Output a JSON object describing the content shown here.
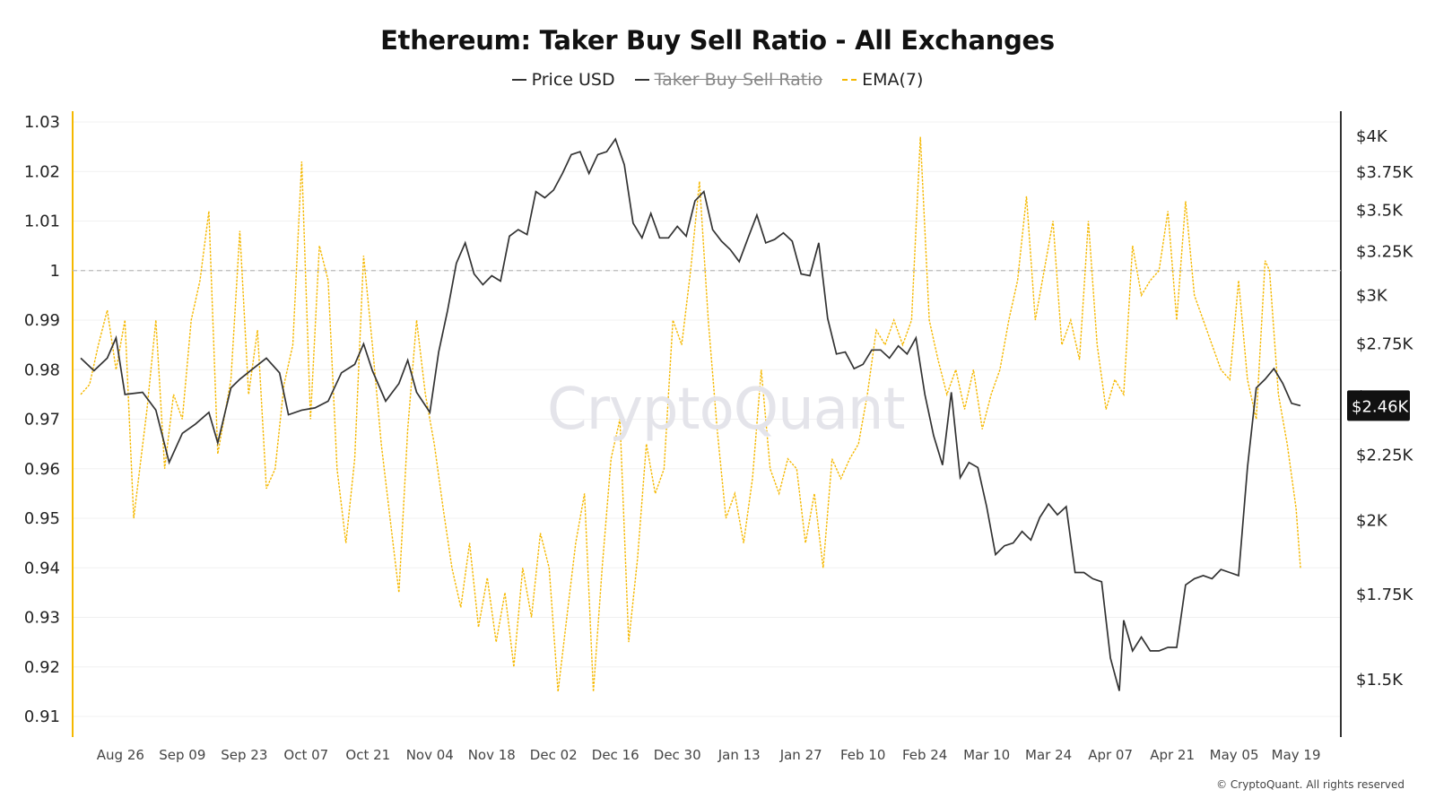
{
  "chart_data": {
    "type": "line",
    "title": "Ethereum: Taker Buy Sell Ratio - All Exchanges",
    "legend": [
      {
        "name": "Price USD",
        "color": "#333333",
        "hidden": false
      },
      {
        "name": "Taker Buy Sell Ratio",
        "color": "#333333",
        "hidden": true
      },
      {
        "name": "EMA(7)",
        "color": "#f5b800",
        "hidden": false
      }
    ],
    "x_ticks": [
      "Aug 26",
      "Sep 09",
      "Sep 23",
      "Oct 07",
      "Oct 21",
      "Nov 04",
      "Nov 18",
      "Dec 02",
      "Dec 16",
      "Dec 30",
      "Jan 13",
      "Jan 27",
      "Feb 10",
      "Feb 24",
      "Mar 10",
      "Mar 24",
      "Apr 07",
      "Apr 21",
      "May 05",
      "May 19"
    ],
    "x_range": [
      "2024-08-17",
      "2025-05-20"
    ],
    "y_left": {
      "ticks": [
        "1.03",
        "1.02",
        "1.01",
        "1",
        "0.99",
        "0.98",
        "0.97",
        "0.96",
        "0.95",
        "0.94",
        "0.93",
        "0.92",
        "0.91"
      ],
      "range": [
        0.91,
        1.03
      ],
      "reference_line": 1
    },
    "y_right": {
      "ticks": [
        "$4K",
        "$3.75K",
        "$3.5K",
        "$3.25K",
        "$3K",
        "$2.75K",
        "$2.5K",
        "$2.25K",
        "$2K",
        "$1.75K",
        "$1.5K"
      ],
      "range": [
        1400,
        4000
      ]
    },
    "current_price_label": "$2.46K",
    "price_usd": [
      [
        "2024-08-17",
        2680
      ],
      [
        "2024-08-20",
        2620
      ],
      [
        "2024-08-23",
        2680
      ],
      [
        "2024-08-25",
        2780
      ],
      [
        "2024-08-27",
        2510
      ],
      [
        "2024-08-31",
        2520
      ],
      [
        "2024-09-03",
        2440
      ],
      [
        "2024-09-06",
        2220
      ],
      [
        "2024-09-09",
        2340
      ],
      [
        "2024-09-12",
        2380
      ],
      [
        "2024-09-15",
        2430
      ],
      [
        "2024-09-17",
        2300
      ],
      [
        "2024-09-20",
        2540
      ],
      [
        "2024-09-22",
        2580
      ],
      [
        "2024-09-25",
        2630
      ],
      [
        "2024-09-28",
        2680
      ],
      [
        "2024-10-01",
        2610
      ],
      [
        "2024-10-03",
        2420
      ],
      [
        "2024-10-06",
        2440
      ],
      [
        "2024-10-09",
        2450
      ],
      [
        "2024-10-12",
        2480
      ],
      [
        "2024-10-15",
        2610
      ],
      [
        "2024-10-18",
        2650
      ],
      [
        "2024-10-20",
        2750
      ],
      [
        "2024-10-22",
        2620
      ],
      [
        "2024-10-25",
        2480
      ],
      [
        "2024-10-28",
        2560
      ],
      [
        "2024-10-30",
        2670
      ],
      [
        "2024-11-01",
        2520
      ],
      [
        "2024-11-04",
        2430
      ],
      [
        "2024-11-06",
        2710
      ],
      [
        "2024-11-08",
        2920
      ],
      [
        "2024-11-10",
        3180
      ],
      [
        "2024-11-12",
        3300
      ],
      [
        "2024-11-14",
        3120
      ],
      [
        "2024-11-16",
        3060
      ],
      [
        "2024-11-18",
        3110
      ],
      [
        "2024-11-20",
        3080
      ],
      [
        "2024-11-22",
        3340
      ],
      [
        "2024-11-24",
        3380
      ],
      [
        "2024-11-26",
        3350
      ],
      [
        "2024-11-28",
        3620
      ],
      [
        "2024-11-30",
        3580
      ],
      [
        "2024-12-02",
        3630
      ],
      [
        "2024-12-04",
        3740
      ],
      [
        "2024-12-06",
        3870
      ],
      [
        "2024-12-08",
        3890
      ],
      [
        "2024-12-10",
        3740
      ],
      [
        "2024-12-12",
        3870
      ],
      [
        "2024-12-14",
        3890
      ],
      [
        "2024-12-16",
        3980
      ],
      [
        "2024-12-18",
        3800
      ],
      [
        "2024-12-20",
        3420
      ],
      [
        "2024-12-22",
        3330
      ],
      [
        "2024-12-24",
        3480
      ],
      [
        "2024-12-26",
        3330
      ],
      [
        "2024-12-28",
        3330
      ],
      [
        "2024-12-30",
        3400
      ],
      [
        "2025-01-01",
        3340
      ],
      [
        "2025-01-03",
        3560
      ],
      [
        "2025-01-05",
        3620
      ],
      [
        "2025-01-07",
        3380
      ],
      [
        "2025-01-09",
        3310
      ],
      [
        "2025-01-11",
        3260
      ],
      [
        "2025-01-13",
        3190
      ],
      [
        "2025-01-15",
        3330
      ],
      [
        "2025-01-17",
        3470
      ],
      [
        "2025-01-19",
        3300
      ],
      [
        "2025-01-21",
        3320
      ],
      [
        "2025-01-23",
        3360
      ],
      [
        "2025-01-25",
        3310
      ],
      [
        "2025-01-27",
        3120
      ],
      [
        "2025-01-29",
        3110
      ],
      [
        "2025-01-31",
        3300
      ],
      [
        "2025-02-02",
        2880
      ],
      [
        "2025-02-04",
        2700
      ],
      [
        "2025-02-06",
        2710
      ],
      [
        "2025-02-08",
        2630
      ],
      [
        "2025-02-10",
        2650
      ],
      [
        "2025-02-12",
        2720
      ],
      [
        "2025-02-14",
        2720
      ],
      [
        "2025-02-16",
        2680
      ],
      [
        "2025-02-18",
        2740
      ],
      [
        "2025-02-20",
        2700
      ],
      [
        "2025-02-22",
        2780
      ],
      [
        "2025-02-24",
        2510
      ],
      [
        "2025-02-26",
        2330
      ],
      [
        "2025-02-28",
        2210
      ],
      [
        "2025-03-02",
        2520
      ],
      [
        "2025-03-04",
        2160
      ],
      [
        "2025-03-06",
        2220
      ],
      [
        "2025-03-08",
        2200
      ],
      [
        "2025-03-10",
        2050
      ],
      [
        "2025-03-12",
        1880
      ],
      [
        "2025-03-14",
        1910
      ],
      [
        "2025-03-16",
        1920
      ],
      [
        "2025-03-18",
        1960
      ],
      [
        "2025-03-20",
        1930
      ],
      [
        "2025-03-22",
        2010
      ],
      [
        "2025-03-24",
        2060
      ],
      [
        "2025-03-26",
        2020
      ],
      [
        "2025-03-28",
        2050
      ],
      [
        "2025-03-30",
        1820
      ],
      [
        "2025-04-01",
        1820
      ],
      [
        "2025-04-03",
        1800
      ],
      [
        "2025-04-05",
        1790
      ],
      [
        "2025-04-07",
        1560
      ],
      [
        "2025-04-09",
        1470
      ],
      [
        "2025-04-10",
        1670
      ],
      [
        "2025-04-12",
        1580
      ],
      [
        "2025-04-14",
        1620
      ],
      [
        "2025-04-16",
        1580
      ],
      [
        "2025-04-18",
        1580
      ],
      [
        "2025-04-20",
        1590
      ],
      [
        "2025-04-22",
        1590
      ],
      [
        "2025-04-24",
        1780
      ],
      [
        "2025-04-26",
        1800
      ],
      [
        "2025-04-28",
        1810
      ],
      [
        "2025-04-30",
        1800
      ],
      [
        "2025-05-02",
        1830
      ],
      [
        "2025-05-04",
        1820
      ],
      [
        "2025-05-06",
        1810
      ],
      [
        "2025-05-08",
        2200
      ],
      [
        "2025-05-10",
        2540
      ],
      [
        "2025-05-12",
        2580
      ],
      [
        "2025-05-14",
        2630
      ],
      [
        "2025-05-16",
        2560
      ],
      [
        "2025-05-18",
        2470
      ],
      [
        "2025-05-20",
        2460
      ]
    ],
    "ema7": [
      [
        "2024-08-17",
        0.975
      ],
      [
        "2024-08-19",
        0.977
      ],
      [
        "2024-08-21",
        0.985
      ],
      [
        "2024-08-23",
        0.992
      ],
      [
        "2024-08-25",
        0.98
      ],
      [
        "2024-08-27",
        0.99
      ],
      [
        "2024-08-29",
        0.95
      ],
      [
        "2024-09-01",
        0.972
      ],
      [
        "2024-09-03",
        0.99
      ],
      [
        "2024-09-05",
        0.96
      ],
      [
        "2024-09-07",
        0.975
      ],
      [
        "2024-09-09",
        0.97
      ],
      [
        "2024-09-11",
        0.99
      ],
      [
        "2024-09-13",
        0.998
      ],
      [
        "2024-09-15",
        1.012
      ],
      [
        "2024-09-17",
        0.963
      ],
      [
        "2024-09-20",
        0.978
      ],
      [
        "2024-09-22",
        1.008
      ],
      [
        "2024-09-24",
        0.975
      ],
      [
        "2024-09-26",
        0.988
      ],
      [
        "2024-09-28",
        0.956
      ],
      [
        "2024-09-30",
        0.96
      ],
      [
        "2024-10-02",
        0.977
      ],
      [
        "2024-10-04",
        0.985
      ],
      [
        "2024-10-06",
        1.022
      ],
      [
        "2024-10-08",
        0.97
      ],
      [
        "2024-10-10",
        1.005
      ],
      [
        "2024-10-12",
        0.998
      ],
      [
        "2024-10-14",
        0.96
      ],
      [
        "2024-10-16",
        0.945
      ],
      [
        "2024-10-18",
        0.962
      ],
      [
        "2024-10-20",
        1.003
      ],
      [
        "2024-10-22",
        0.985
      ],
      [
        "2024-10-24",
        0.965
      ],
      [
        "2024-10-26",
        0.95
      ],
      [
        "2024-10-28",
        0.935
      ],
      [
        "2024-10-30",
        0.968
      ],
      [
        "2024-11-01",
        0.99
      ],
      [
        "2024-11-03",
        0.975
      ],
      [
        "2024-11-05",
        0.965
      ],
      [
        "2024-11-07",
        0.952
      ],
      [
        "2024-11-09",
        0.94
      ],
      [
        "2024-11-11",
        0.932
      ],
      [
        "2024-11-13",
        0.945
      ],
      [
        "2024-11-15",
        0.928
      ],
      [
        "2024-11-17",
        0.938
      ],
      [
        "2024-11-19",
        0.925
      ],
      [
        "2024-11-21",
        0.935
      ],
      [
        "2024-11-23",
        0.92
      ],
      [
        "2024-11-25",
        0.94
      ],
      [
        "2024-11-27",
        0.93
      ],
      [
        "2024-11-29",
        0.947
      ],
      [
        "2024-12-01",
        0.94
      ],
      [
        "2024-12-03",
        0.915
      ],
      [
        "2024-12-05",
        0.93
      ],
      [
        "2024-12-07",
        0.945
      ],
      [
        "2024-12-09",
        0.955
      ],
      [
        "2024-12-11",
        0.915
      ],
      [
        "2024-12-13",
        0.94
      ],
      [
        "2024-12-15",
        0.962
      ],
      [
        "2024-12-17",
        0.97
      ],
      [
        "2024-12-19",
        0.925
      ],
      [
        "2024-12-21",
        0.942
      ],
      [
        "2024-12-23",
        0.965
      ],
      [
        "2024-12-25",
        0.955
      ],
      [
        "2024-12-27",
        0.96
      ],
      [
        "2024-12-29",
        0.99
      ],
      [
        "2024-12-31",
        0.985
      ],
      [
        "2025-01-02",
        1.0
      ],
      [
        "2025-01-04",
        1.018
      ],
      [
        "2025-01-06",
        0.99
      ],
      [
        "2025-01-08",
        0.968
      ],
      [
        "2025-01-10",
        0.95
      ],
      [
        "2025-01-12",
        0.955
      ],
      [
        "2025-01-14",
        0.945
      ],
      [
        "2025-01-16",
        0.958
      ],
      [
        "2025-01-18",
        0.98
      ],
      [
        "2025-01-20",
        0.96
      ],
      [
        "2025-01-22",
        0.955
      ],
      [
        "2025-01-24",
        0.962
      ],
      [
        "2025-01-26",
        0.96
      ],
      [
        "2025-01-28",
        0.945
      ],
      [
        "2025-01-30",
        0.955
      ],
      [
        "2025-02-01",
        0.94
      ],
      [
        "2025-02-03",
        0.962
      ],
      [
        "2025-02-05",
        0.958
      ],
      [
        "2025-02-07",
        0.962
      ],
      [
        "2025-02-09",
        0.965
      ],
      [
        "2025-02-11",
        0.975
      ],
      [
        "2025-02-13",
        0.988
      ],
      [
        "2025-02-15",
        0.985
      ],
      [
        "2025-02-17",
        0.99
      ],
      [
        "2025-02-19",
        0.985
      ],
      [
        "2025-02-21",
        0.99
      ],
      [
        "2025-02-23",
        1.027
      ],
      [
        "2025-02-25",
        0.99
      ],
      [
        "2025-02-27",
        0.982
      ],
      [
        "2025-03-01",
        0.975
      ],
      [
        "2025-03-03",
        0.98
      ],
      [
        "2025-03-05",
        0.972
      ],
      [
        "2025-03-07",
        0.98
      ],
      [
        "2025-03-09",
        0.968
      ],
      [
        "2025-03-11",
        0.975
      ],
      [
        "2025-03-13",
        0.98
      ],
      [
        "2025-03-15",
        0.99
      ],
      [
        "2025-03-17",
        0.998
      ],
      [
        "2025-03-19",
        1.015
      ],
      [
        "2025-03-21",
        0.99
      ],
      [
        "2025-03-23",
        1.0
      ],
      [
        "2025-03-25",
        1.01
      ],
      [
        "2025-03-27",
        0.985
      ],
      [
        "2025-03-29",
        0.99
      ],
      [
        "2025-03-31",
        0.982
      ],
      [
        "2025-04-02",
        1.01
      ],
      [
        "2025-04-04",
        0.985
      ],
      [
        "2025-04-06",
        0.972
      ],
      [
        "2025-04-08",
        0.978
      ],
      [
        "2025-04-10",
        0.975
      ],
      [
        "2025-04-12",
        1.005
      ],
      [
        "2025-04-14",
        0.995
      ],
      [
        "2025-04-16",
        0.998
      ],
      [
        "2025-04-18",
        1.0
      ],
      [
        "2025-04-20",
        1.012
      ],
      [
        "2025-04-22",
        0.99
      ],
      [
        "2025-04-24",
        1.014
      ],
      [
        "2025-04-26",
        0.995
      ],
      [
        "2025-04-28",
        0.99
      ],
      [
        "2025-04-30",
        0.985
      ],
      [
        "2025-05-02",
        0.98
      ],
      [
        "2025-05-04",
        0.978
      ],
      [
        "2025-05-06",
        0.998
      ],
      [
        "2025-05-08",
        0.978
      ],
      [
        "2025-05-10",
        0.97
      ],
      [
        "2025-05-12",
        1.002
      ],
      [
        "2025-05-13",
        1.0
      ],
      [
        "2025-05-15",
        0.975
      ],
      [
        "2025-05-17",
        0.965
      ],
      [
        "2025-05-19",
        0.952
      ],
      [
        "2025-05-20",
        0.94
      ]
    ]
  },
  "footer": {
    "watermark": "CryptoQuant",
    "credit": "© CryptoQuant. All rights reserved"
  }
}
